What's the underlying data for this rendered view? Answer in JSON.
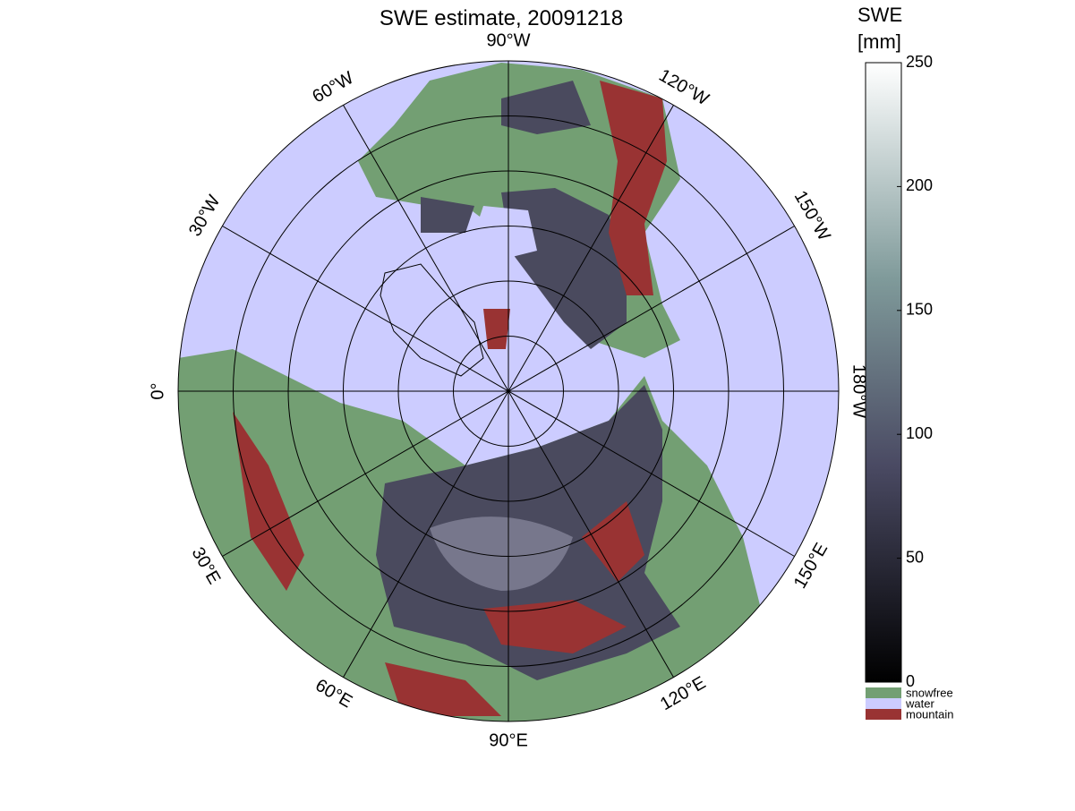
{
  "title": "SWE estimate, 20091218",
  "longitude_labels": [
    "0°",
    "30°E",
    "60°E",
    "90°E",
    "120°E",
    "150°E",
    "180°W",
    "150°W",
    "120°W",
    "90°W",
    "60°W",
    "30°W"
  ],
  "colorbar": {
    "label": [
      "SWE",
      "[mm]"
    ],
    "ylim": [
      0,
      250
    ],
    "yticks": [
      0,
      50,
      100,
      150,
      200,
      250
    ],
    "categories": [
      {
        "name": "snowfree",
        "color": "#739f73"
      },
      {
        "name": "water",
        "color": "#ccccff"
      },
      {
        "name": "mountain",
        "color": "#993333"
      }
    ]
  }
}
